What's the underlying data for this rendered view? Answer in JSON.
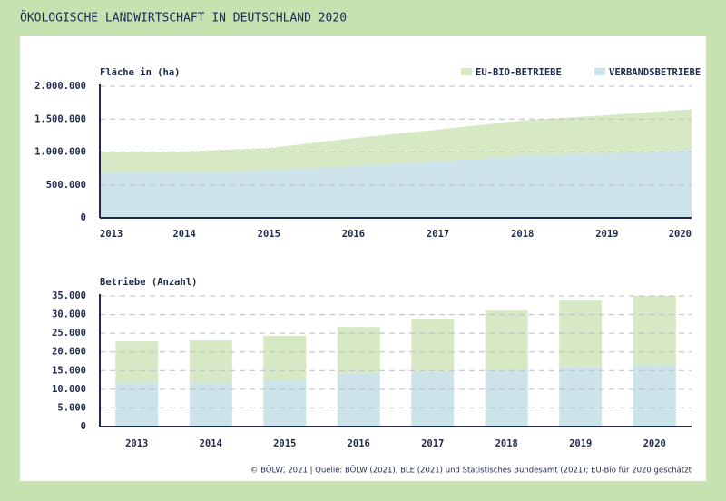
{
  "title": "ÖKOLOGISCHE LANDWIRTSCHAFT IN DEUTSCHLAND 2020",
  "footnote": "© BÖLW, 2021 | Quelle: BÖLW (2021), BLE (2021) und Statistisches Bundesamt (2021); EU-Bio für 2020 geschätzt",
  "chart_data": [
    {
      "type": "area",
      "stacked": true,
      "y_label": "Fläche in (ha)",
      "grid": true,
      "legend": "top-right",
      "categories": [
        "2013",
        "2014",
        "2015",
        "2016",
        "2017",
        "2018",
        "2019",
        "2020"
      ],
      "series": [
        {
          "name": "VERBANDSBETRIEBE",
          "color": "#cde3ea",
          "values": [
            690000,
            690000,
            720000,
            790000,
            860000,
            940000,
            980000,
            1030000
          ]
        },
        {
          "name": "EU-BIO-BETRIEBE",
          "color": "#d6e9c4",
          "values": [
            310000,
            320000,
            340000,
            420000,
            480000,
            540000,
            580000,
            620000
          ]
        }
      ],
      "ylim": [
        0,
        2000000
      ],
      "yticks": [
        0,
        {
          "value": 500000,
          "label": "500.000"
        },
        {
          "value": 1000000,
          "label": "1.000.000"
        },
        {
          "value": 1500000,
          "label": "1.500.000"
        },
        {
          "value": 2000000,
          "label": "2.000.000"
        }
      ]
    },
    {
      "type": "bar",
      "stacked": true,
      "y_label": "Betriebe (Anzahl)",
      "grid": true,
      "categories": [
        "2013",
        "2014",
        "2015",
        "2016",
        "2017",
        "2018",
        "2019",
        "2020"
      ],
      "series": [
        {
          "color": "#cde3ea",
          "values": [
            11900,
            11700,
            12400,
            14100,
            14600,
            15300,
            16000,
            16500
          ]
        },
        {
          "color": "#d6e9c4",
          "values": [
            10900,
            11400,
            11900,
            12600,
            14300,
            15800,
            17800,
            18500
          ]
        }
      ],
      "ylim": [
        0,
        35000
      ],
      "yticks": [
        0,
        {
          "value": 5000,
          "label": "5.000"
        },
        {
          "value": 10000,
          "label": "10.000"
        },
        {
          "value": 15000,
          "label": "15.000"
        },
        {
          "value": 20000,
          "label": "20.000"
        },
        {
          "value": 25000,
          "label": "25.000"
        },
        {
          "value": 30000,
          "label": "30.000"
        },
        {
          "value": 35000,
          "label": "35.000"
        }
      ]
    }
  ]
}
